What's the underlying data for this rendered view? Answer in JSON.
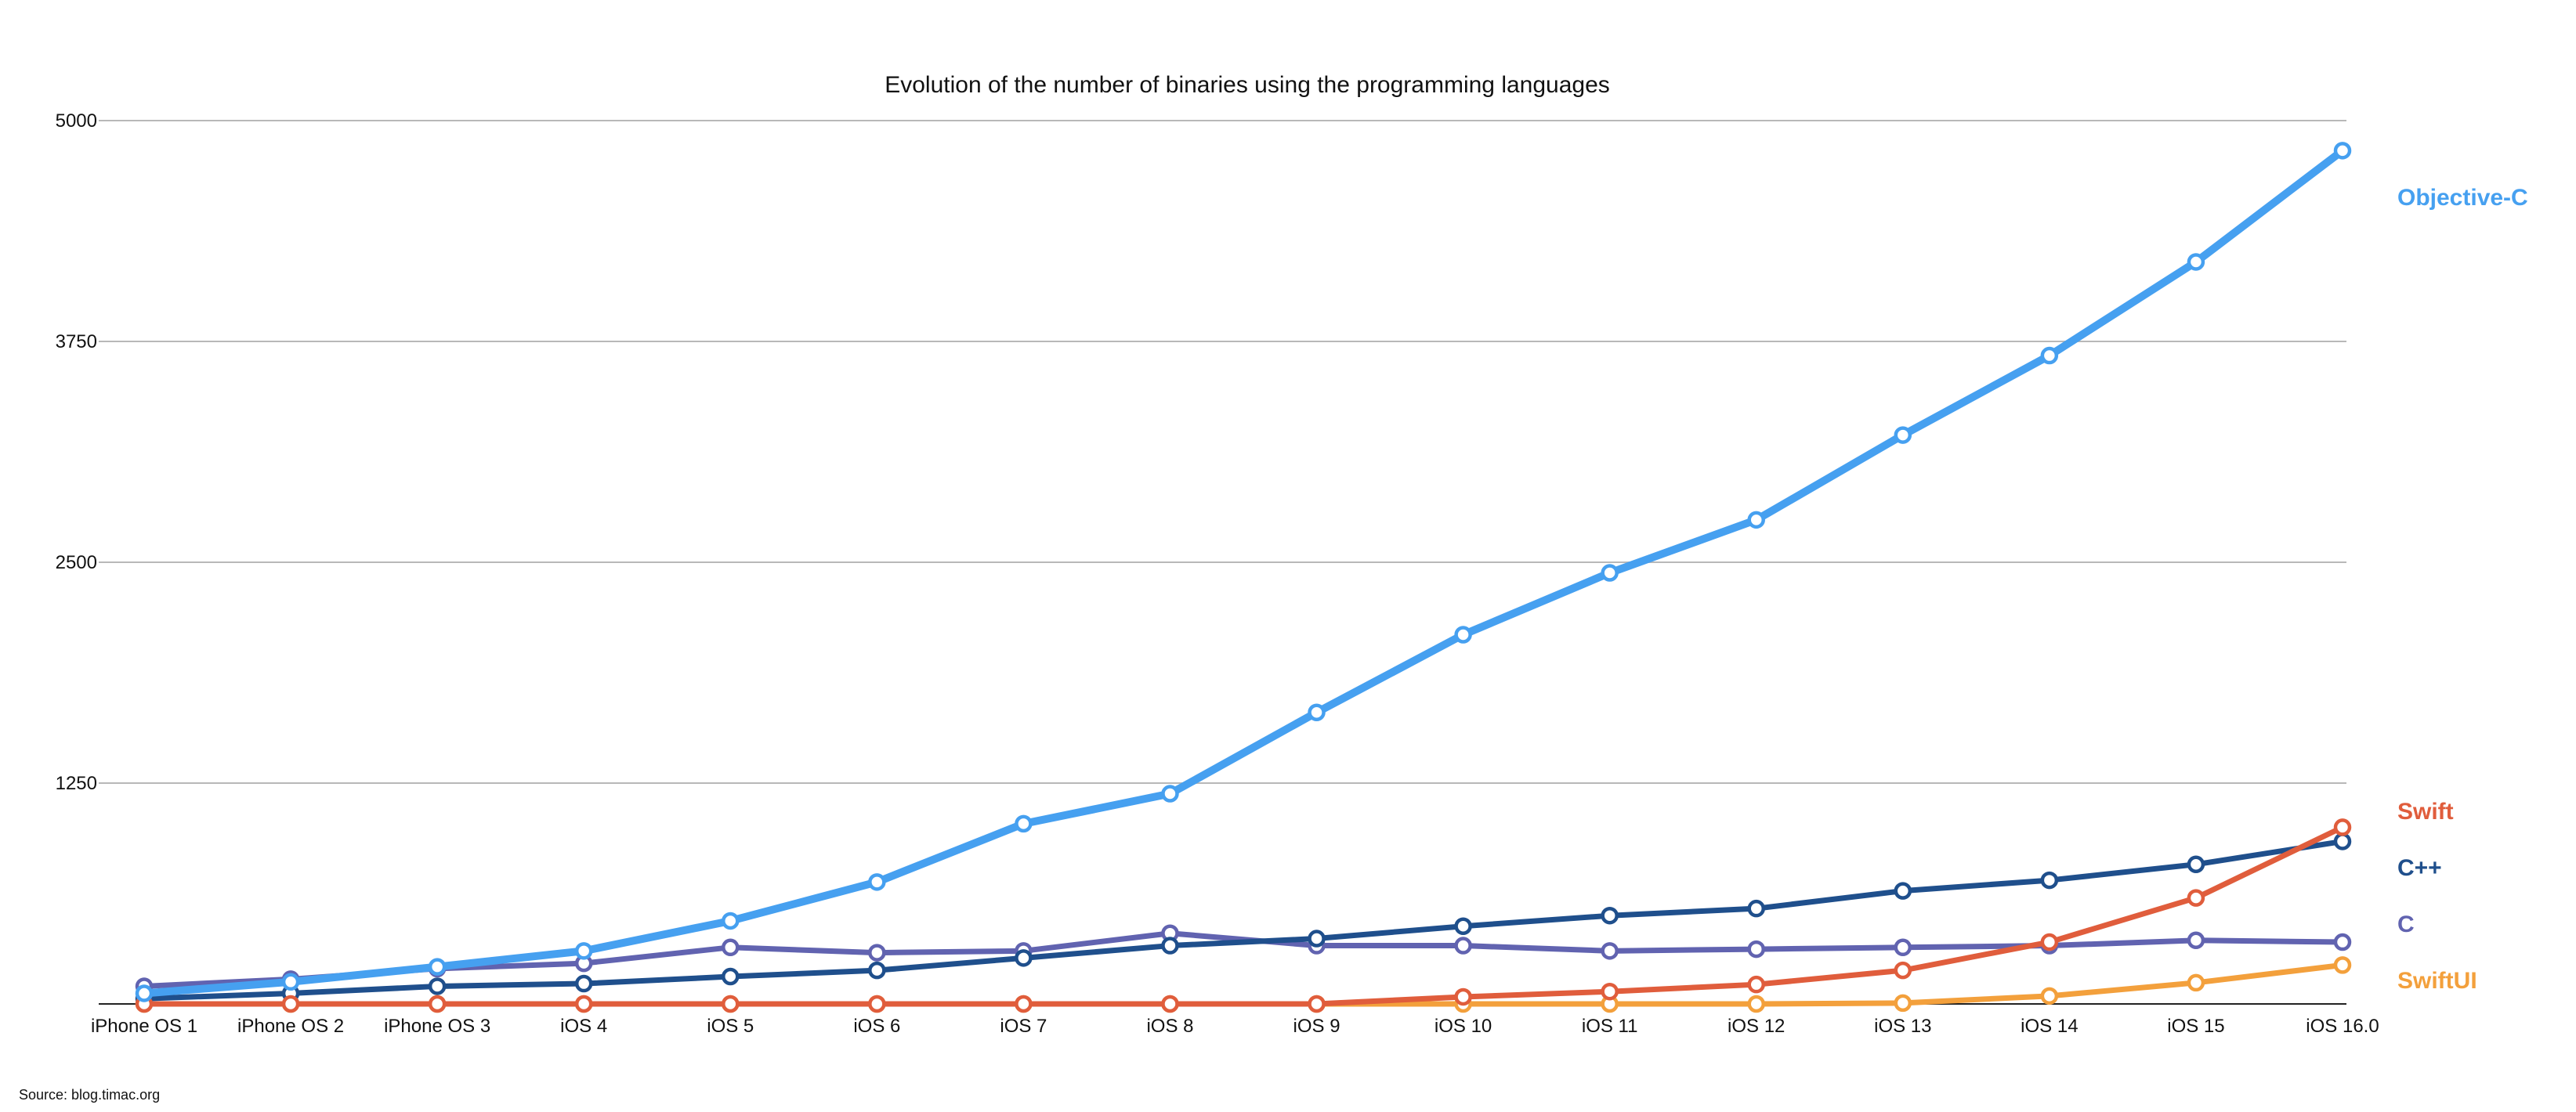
{
  "chart_data": {
    "type": "line",
    "title": "Evolution of the number of binaries using the programming languages",
    "xlabel": "",
    "ylabel": "",
    "categories": [
      "iPhone OS 1",
      "iPhone OS 2",
      "iPhone OS 3",
      "iOS 4",
      "iOS 5",
      "iOS 6",
      "iOS 7",
      "iOS 8",
      "iOS 9",
      "iOS 10",
      "iOS 11",
      "iOS 12",
      "iOS 13",
      "iOS 14",
      "iOS 15",
      "iOS 16.0"
    ],
    "ylim": [
      0,
      5000
    ],
    "yticks": [
      1250,
      2500,
      3750,
      5000
    ],
    "grid": true,
    "legend": "right, labels at series ends",
    "series": [
      {
        "name": "Objective-C",
        "color": "#46a0f0",
        "values": [
          60,
          125,
          210,
          300,
          470,
          690,
          1020,
          1190,
          1650,
          2090,
          2440,
          2740,
          3220,
          3670,
          4200,
          4830
        ]
      },
      {
        "name": "Swift",
        "color": "#e05d3c",
        "values": [
          0,
          0,
          0,
          0,
          0,
          0,
          0,
          0,
          0,
          40,
          70,
          110,
          190,
          350,
          600,
          1000
        ]
      },
      {
        "name": "C++",
        "color": "#1f4f8c",
        "values": [
          30,
          60,
          100,
          115,
          155,
          190,
          260,
          330,
          370,
          440,
          500,
          540,
          640,
          700,
          790,
          920
        ]
      },
      {
        "name": "C",
        "color": "#6163b0",
        "values": [
          100,
          140,
          200,
          230,
          320,
          290,
          300,
          400,
          330,
          330,
          300,
          310,
          320,
          330,
          360,
          350
        ]
      },
      {
        "name": "SwiftUI",
        "color": "#f3a03c",
        "values": [
          0,
          0,
          0,
          0,
          0,
          0,
          0,
          0,
          0,
          0,
          0,
          0,
          5,
          45,
          120,
          220
        ]
      }
    ]
  },
  "source": "Source: blog.timac.org"
}
